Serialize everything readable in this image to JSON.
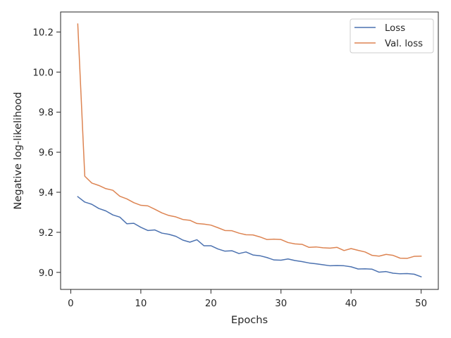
{
  "chart_data": {
    "type": "line",
    "title": "",
    "xlabel": "Epochs",
    "ylabel": "Negative log-likelihood",
    "xlim": [
      -1.45,
      52.45
    ],
    "ylim": [
      8.915,
      10.3
    ],
    "xticks": [
      0,
      10,
      20,
      30,
      40,
      50
    ],
    "xtick_labels": [
      "0",
      "10",
      "20",
      "30",
      "40",
      "50"
    ],
    "yticks": [
      9.0,
      9.2,
      9.4,
      9.6,
      9.8,
      10.0,
      10.2
    ],
    "ytick_labels": [
      "9.0",
      "9.2",
      "9.4",
      "9.6",
      "9.8",
      "10.0",
      "10.2"
    ],
    "grid": false,
    "legend_position": "top-right",
    "x": [
      1,
      2,
      3,
      4,
      5,
      6,
      7,
      8,
      9,
      10,
      11,
      12,
      13,
      14,
      15,
      16,
      17,
      18,
      19,
      20,
      21,
      22,
      23,
      24,
      25,
      26,
      27,
      28,
      29,
      30,
      31,
      32,
      33,
      34,
      35,
      36,
      37,
      38,
      39,
      40,
      41,
      42,
      43,
      44,
      45,
      46,
      47,
      48,
      49,
      50
    ],
    "series": [
      {
        "name": "Loss",
        "color": "#4c72b0",
        "values": [
          9.378,
          9.351,
          9.34,
          9.319,
          9.307,
          9.287,
          9.276,
          9.243,
          9.245,
          9.225,
          9.209,
          9.212,
          9.196,
          9.19,
          9.18,
          9.161,
          9.151,
          9.163,
          9.133,
          9.133,
          9.117,
          9.106,
          9.108,
          9.094,
          9.102,
          9.087,
          9.083,
          9.074,
          9.062,
          9.061,
          9.067,
          9.059,
          9.054,
          9.047,
          9.043,
          9.038,
          9.033,
          9.034,
          9.033,
          9.028,
          9.017,
          9.018,
          9.016,
          9.001,
          9.004,
          8.996,
          8.993,
          8.994,
          8.991,
          8.978
        ]
      },
      {
        "name": "Val. loss",
        "color": "#dd8452",
        "values": [
          10.24,
          9.48,
          9.446,
          9.434,
          9.418,
          9.41,
          9.38,
          9.367,
          9.348,
          9.335,
          9.332,
          9.315,
          9.297,
          9.284,
          9.277,
          9.264,
          9.26,
          9.244,
          9.241,
          9.236,
          9.223,
          9.209,
          9.208,
          9.196,
          9.188,
          9.187,
          9.177,
          9.164,
          9.166,
          9.164,
          9.149,
          9.142,
          9.14,
          9.125,
          9.127,
          9.123,
          9.121,
          9.125,
          9.109,
          9.119,
          9.11,
          9.102,
          9.085,
          9.081,
          9.09,
          9.085,
          9.071,
          9.07,
          9.08,
          9.081
        ]
      }
    ]
  }
}
